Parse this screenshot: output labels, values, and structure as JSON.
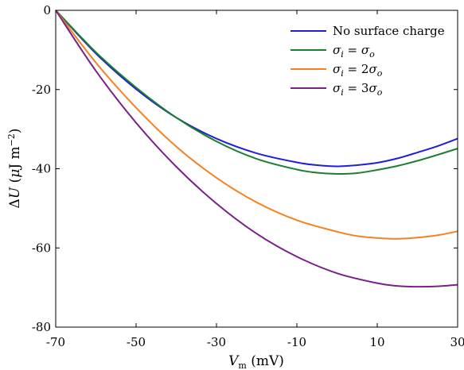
{
  "chart_data": {
    "type": "line",
    "xlabel": "V_m (mV)",
    "ylabel": "ΔU (μJ m⁻²)",
    "xlim": [
      -70,
      30
    ],
    "ylim": [
      -80,
      0
    ],
    "x_ticks": [
      -70,
      -50,
      -30,
      -10,
      10,
      30
    ],
    "y_ticks": [
      0,
      -20,
      -40,
      -60,
      -80
    ],
    "legend_position": "top-right",
    "grid": false,
    "series": [
      {
        "name": "No surface charge",
        "color": "#1f1fd6",
        "x": [
          -70,
          -60,
          -50,
          -40,
          -30,
          -20,
          -10,
          -5,
          0,
          5,
          10,
          15,
          20,
          25,
          30
        ],
        "y": [
          0,
          -10.9,
          -19.9,
          -27.1,
          -32.4,
          -36.1,
          -38.4,
          -39.1,
          -39.4,
          -39.1,
          -38.5,
          -37.4,
          -35.9,
          -34.3,
          -32.4
        ]
      },
      {
        "name": "σ_i = σ_o",
        "color": "#1a7f2e",
        "x": [
          -70,
          -60,
          -50,
          -40,
          -30,
          -20,
          -10,
          -5,
          0,
          5,
          10,
          15,
          20,
          25,
          30
        ],
        "y": [
          0,
          -10.6,
          -19.5,
          -27.1,
          -33.1,
          -37.5,
          -40.2,
          -41,
          -41.3,
          -41.1,
          -40.3,
          -39.3,
          -38,
          -36.5,
          -34.9
        ]
      },
      {
        "name": "σ_i = 2σ_o",
        "color": "#f5821f",
        "x": [
          -70,
          -60,
          -50,
          -40,
          -30,
          -20,
          -10,
          0,
          5,
          10,
          15,
          20,
          25,
          30
        ],
        "y": [
          0,
          -13.2,
          -24.6,
          -34.4,
          -42.3,
          -48.5,
          -53,
          -55.9,
          -57,
          -57.5,
          -57.7,
          -57.4,
          -56.8,
          -55.8
        ]
      },
      {
        "name": "σ_i = 3σ_o",
        "color": "#7b1f8a",
        "x": [
          -70,
          -60,
          -50,
          -40,
          -30,
          -20,
          -10,
          0,
          10,
          15,
          20,
          25,
          30
        ],
        "y": [
          0,
          -15.3,
          -28.4,
          -39.5,
          -48.8,
          -56.4,
          -62.2,
          -66.4,
          -68.9,
          -69.6,
          -69.8,
          -69.7,
          -69.3
        ]
      }
    ]
  }
}
